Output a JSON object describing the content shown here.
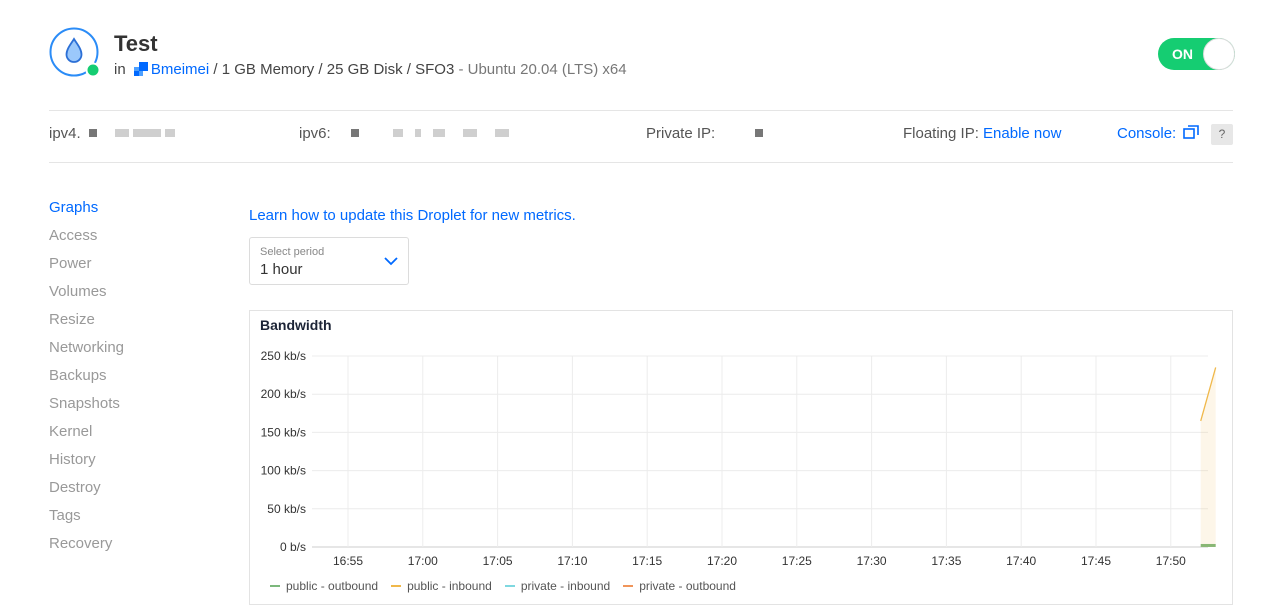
{
  "header": {
    "title": "Test",
    "in_label": "in",
    "team_name": "Bmeimei",
    "specs": "/ 1 GB Memory / 25 GB Disk / SFO3",
    "os": "- Ubuntu 20.04 (LTS) x64",
    "power_toggle_label": "ON",
    "status_color": "#15cd72",
    "accent_color": "#0069ff"
  },
  "info_bar": {
    "ipv4_label": "ipv4.",
    "ipv6_label": "ipv6:",
    "private_ip_label": "Private IP:",
    "floating_ip_label": "Floating IP:",
    "floating_ip_action": "Enable now",
    "console_label": "Console:",
    "help_label": "?"
  },
  "sidenav": {
    "items": [
      {
        "label": "Graphs",
        "active": true
      },
      {
        "label": "Access"
      },
      {
        "label": "Power"
      },
      {
        "label": "Volumes"
      },
      {
        "label": "Resize"
      },
      {
        "label": "Networking"
      },
      {
        "label": "Backups"
      },
      {
        "label": "Snapshots"
      },
      {
        "label": "Kernel"
      },
      {
        "label": "History"
      },
      {
        "label": "Destroy"
      },
      {
        "label": "Tags"
      },
      {
        "label": "Recovery"
      }
    ]
  },
  "main": {
    "learn_link": "Learn how to update this Droplet for new metrics.",
    "period_label": "Select period",
    "period_value": "1 hour"
  },
  "chart_data": {
    "type": "line",
    "title": "Bandwidth",
    "y_ticks": [
      "250 kb/s",
      "200 kb/s",
      "150 kb/s",
      "100 kb/s",
      "50 kb/s",
      "0 b/s"
    ],
    "y_tick_values": [
      250,
      200,
      150,
      100,
      50,
      0
    ],
    "ylim": [
      0,
      250
    ],
    "x_ticks": [
      "16:55",
      "17:00",
      "17:05",
      "17:10",
      "17:15",
      "17:20",
      "17:25",
      "17:30",
      "17:35",
      "17:40",
      "17:45",
      "17:50"
    ],
    "grid": true,
    "legend_position": "bottom-left",
    "series": [
      {
        "name": "public - outbound",
        "color": "#7cb87c",
        "points": [
          [
            "17:52",
            2
          ],
          [
            "17:53",
            2
          ]
        ]
      },
      {
        "name": "public - inbound",
        "color": "#f0b84a",
        "points": [
          [
            "17:52",
            165
          ],
          [
            "17:53",
            235
          ]
        ]
      },
      {
        "name": "private - inbound",
        "color": "#7fd8e0",
        "points": []
      },
      {
        "name": "private - outbound",
        "color": "#f0955a",
        "points": []
      }
    ]
  }
}
